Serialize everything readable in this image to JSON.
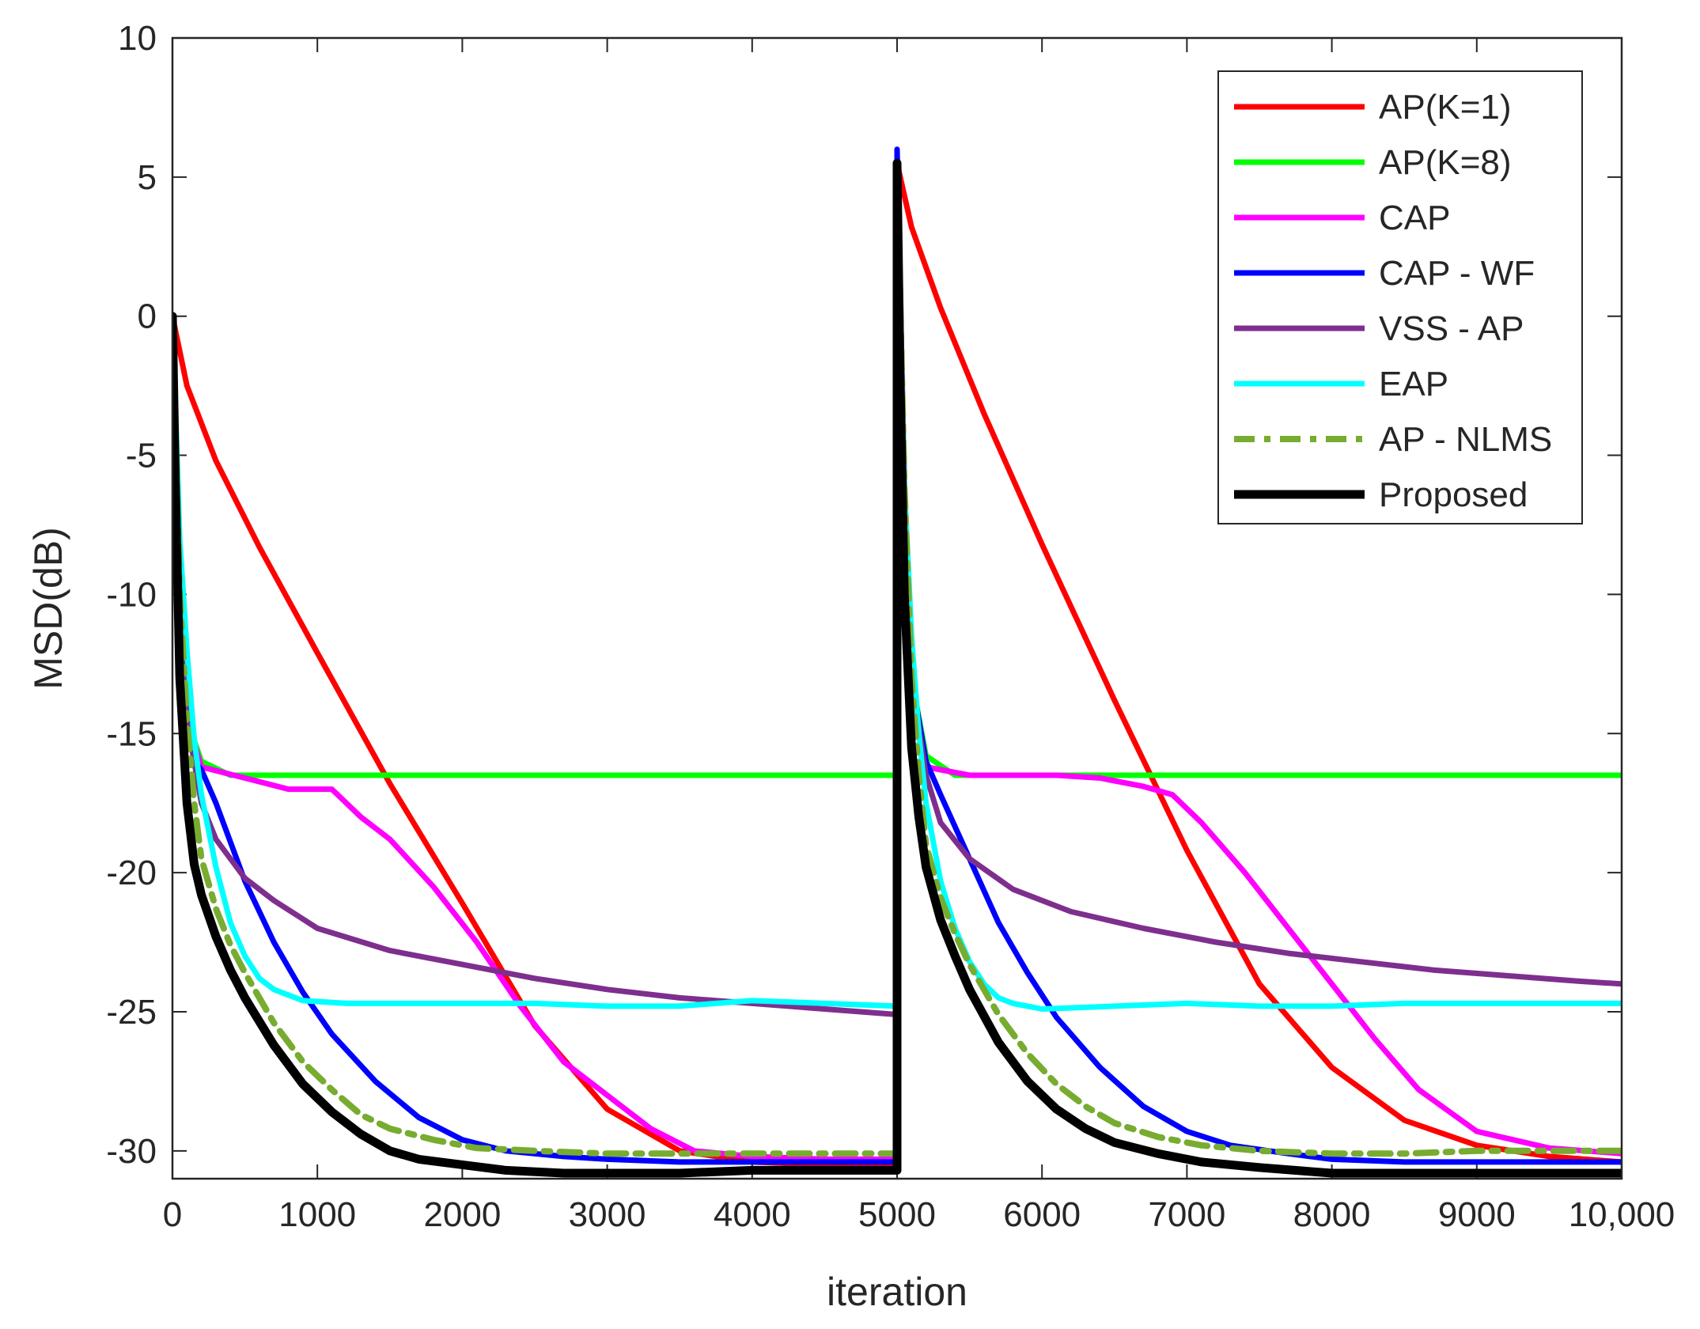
{
  "chart_data": {
    "type": "line",
    "title": "",
    "xlabel": "iteration",
    "ylabel": "MSD(dB)",
    "xlim": [
      0,
      10000
    ],
    "ylim": [
      -31,
      10
    ],
    "xticks": [
      0,
      1000,
      2000,
      3000,
      4000,
      5000,
      6000,
      7000,
      8000,
      9000,
      10000
    ],
    "xtick_labels": [
      "0",
      "1000",
      "2000",
      "3000",
      "4000",
      "5000",
      "6000",
      "7000",
      "8000",
      "9000",
      "10,000"
    ],
    "yticks": [
      10,
      5,
      0,
      -5,
      -10,
      -15,
      -20,
      -25,
      -30
    ],
    "ytick_labels": [
      "10",
      "5",
      "0",
      "-5",
      "-10",
      "-15",
      "-20",
      "-25",
      "-30"
    ],
    "legend_position": "top-right",
    "series": [
      {
        "name": "AP(K=1)",
        "color": "#ff0000",
        "style": "solid",
        "x": [
          0,
          100,
          300,
          600,
          1000,
          1500,
          2000,
          2500,
          3000,
          3500,
          4000,
          4500,
          5000,
          5000,
          5100,
          5300,
          5600,
          6000,
          6500,
          7000,
          7500,
          8000,
          8500,
          9000,
          9500,
          10000
        ],
        "values": [
          0,
          -2.5,
          -5.2,
          -8.3,
          -12.1,
          -16.8,
          -21.1,
          -25.5,
          -28.5,
          -30.0,
          -30.4,
          -30.5,
          -30.6,
          5.5,
          3.2,
          0.3,
          -3.5,
          -8.2,
          -13.8,
          -19.2,
          -24.0,
          -27.0,
          -28.9,
          -29.8,
          -30.2,
          -30.4
        ]
      },
      {
        "name": "AP(K=8)",
        "color": "#00ff00",
        "style": "solid",
        "x": [
          0,
          50,
          100,
          200,
          400,
          1000,
          2000,
          3000,
          4000,
          5000,
          5000,
          5050,
          5100,
          5200,
          5400,
          6000,
          7000,
          8000,
          9000,
          10000
        ],
        "values": [
          0,
          -10,
          -14.5,
          -16.0,
          -16.5,
          -16.5,
          -16.5,
          -16.5,
          -16.5,
          -16.5,
          5.5,
          -6,
          -13,
          -15.8,
          -16.5,
          -16.5,
          -16.5,
          -16.5,
          -16.5,
          -16.5
        ]
      },
      {
        "name": "CAP",
        "color": "#ff00ff",
        "style": "solid",
        "x": [
          0,
          50,
          100,
          200,
          500,
          800,
          1100,
          1300,
          1500,
          1800,
          2100,
          2400,
          2700,
          3000,
          3300,
          3600,
          4000,
          4500,
          5000,
          5000,
          5050,
          5100,
          5200,
          5500,
          5800,
          6100,
          6400,
          6700,
          6900,
          7100,
          7400,
          7700,
          8000,
          8300,
          8600,
          9000,
          9500,
          10000
        ],
        "values": [
          0,
          -10,
          -14.5,
          -16.2,
          -16.6,
          -17.0,
          -17.0,
          -18.0,
          -18.8,
          -20.5,
          -22.5,
          -24.8,
          -26.8,
          -28.0,
          -29.2,
          -30.0,
          -30.2,
          -30.3,
          -30.3,
          5.5,
          -6,
          -13,
          -16.2,
          -16.5,
          -16.5,
          -16.5,
          -16.6,
          -16.9,
          -17.2,
          -18.2,
          -20.0,
          -22.0,
          -24.0,
          -26.0,
          -27.8,
          -29.3,
          -29.9,
          -30.1
        ]
      },
      {
        "name": "CAP - WF",
        "color": "#0000ff",
        "style": "solid",
        "x": [
          0,
          50,
          100,
          150,
          200,
          300,
          500,
          700,
          900,
          1100,
          1400,
          1700,
          2000,
          2300,
          2700,
          3000,
          3500,
          4000,
          4500,
          5000,
          5000,
          5050,
          5100,
          5200,
          5300,
          5500,
          5700,
          5900,
          6100,
          6400,
          6700,
          7000,
          7300,
          7700,
          8000,
          8500,
          9000,
          9500,
          10000
        ],
        "values": [
          0,
          -10,
          -14.5,
          -16.0,
          -16.3,
          -17.5,
          -20.3,
          -22.5,
          -24.3,
          -25.8,
          -27.5,
          -28.8,
          -29.6,
          -30.0,
          -30.2,
          -30.3,
          -30.4,
          -30.4,
          -30.4,
          -30.4,
          6.0,
          -6,
          -13,
          -16.0,
          -17.2,
          -19.5,
          -21.8,
          -23.6,
          -25.2,
          -27.0,
          -28.4,
          -29.3,
          -29.8,
          -30.1,
          -30.3,
          -30.4,
          -30.4,
          -30.4,
          -30.4
        ]
      },
      {
        "name": "VSS - AP",
        "color": "#7e2f8e",
        "style": "solid",
        "x": [
          0,
          50,
          100,
          200,
          300,
          500,
          700,
          1000,
          1500,
          2000,
          2500,
          3000,
          3500,
          4000,
          4500,
          5000,
          5000,
          5050,
          5100,
          5200,
          5300,
          5500,
          5800,
          6200,
          6700,
          7200,
          7700,
          8200,
          8700,
          9200,
          9700,
          10000
        ],
        "values": [
          0,
          -10,
          -14.5,
          -17.5,
          -18.8,
          -20.2,
          -21.0,
          -22.0,
          -22.8,
          -23.3,
          -23.8,
          -24.2,
          -24.5,
          -24.7,
          -24.9,
          -25.1,
          5.5,
          -6,
          -13,
          -16.5,
          -18.2,
          -19.5,
          -20.6,
          -21.4,
          -22.0,
          -22.5,
          -22.9,
          -23.2,
          -23.5,
          -23.7,
          -23.9,
          -24.0
        ]
      },
      {
        "name": "EAP",
        "color": "#00ffff",
        "style": "solid",
        "x": [
          0,
          50,
          100,
          150,
          200,
          300,
          400,
          500,
          600,
          700,
          900,
          1200,
          1600,
          2000,
          2500,
          3000,
          3500,
          4000,
          4500,
          5000,
          5000,
          5050,
          5100,
          5150,
          5200,
          5300,
          5400,
          5500,
          5600,
          5700,
          5800,
          6000,
          6500,
          7000,
          7500,
          8000,
          8500,
          9000,
          9500,
          10000
        ],
        "values": [
          0,
          -8.0,
          -12.0,
          -15.2,
          -17.2,
          -19.8,
          -21.8,
          -23.0,
          -23.8,
          -24.2,
          -24.6,
          -24.7,
          -24.7,
          -24.7,
          -24.7,
          -24.8,
          -24.8,
          -24.6,
          -24.7,
          -24.8,
          5.5,
          -6.0,
          -11.5,
          -15.0,
          -17.5,
          -20.3,
          -22.0,
          -23.2,
          -24.0,
          -24.5,
          -24.7,
          -24.9,
          -24.8,
          -24.7,
          -24.8,
          -24.8,
          -24.7,
          -24.7,
          -24.7,
          -24.7
        ]
      },
      {
        "name": "AP - NLMS",
        "color": "#77ac30",
        "style": "dashed",
        "x": [
          0,
          50,
          100,
          150,
          200,
          300,
          400,
          500,
          700,
          900,
          1100,
          1300,
          1500,
          1800,
          2100,
          2500,
          3000,
          3500,
          4000,
          4500,
          5000,
          5000,
          5050,
          5100,
          5150,
          5200,
          5300,
          5400,
          5500,
          5700,
          5900,
          6100,
          6300,
          6500,
          6800,
          7100,
          7500,
          8000,
          8500,
          9000,
          9500,
          10000
        ],
        "values": [
          0,
          -10,
          -14.5,
          -17.5,
          -19.5,
          -21.3,
          -22.6,
          -23.6,
          -25.4,
          -26.8,
          -27.8,
          -28.7,
          -29.2,
          -29.6,
          -29.9,
          -30.0,
          -30.1,
          -30.1,
          -30.1,
          -30.1,
          -30.1,
          5.5,
          -6,
          -13,
          -16.5,
          -19.0,
          -20.9,
          -22.2,
          -23.3,
          -25.1,
          -26.5,
          -27.6,
          -28.4,
          -29.0,
          -29.5,
          -29.8,
          -30.0,
          -30.1,
          -30.1,
          -30.0,
          -30.0,
          -30.0
        ]
      },
      {
        "name": "Proposed",
        "color": "#000000",
        "style": "solid-thick",
        "x": [
          0,
          20,
          50,
          100,
          150,
          200,
          300,
          400,
          500,
          700,
          900,
          1100,
          1300,
          1500,
          1700,
          2000,
          2300,
          2700,
          3000,
          3500,
          4000,
          4500,
          5000,
          5000,
          5020,
          5050,
          5100,
          5150,
          5200,
          5300,
          5400,
          5500,
          5700,
          5900,
          6100,
          6300,
          6500,
          6800,
          7100,
          7500,
          8000,
          8500,
          9000,
          9500,
          10000
        ],
        "values": [
          0,
          -6,
          -13,
          -17.5,
          -19.7,
          -20.8,
          -22.3,
          -23.5,
          -24.5,
          -26.2,
          -27.6,
          -28.6,
          -29.4,
          -30.0,
          -30.3,
          -30.5,
          -30.7,
          -30.8,
          -30.8,
          -30.8,
          -30.7,
          -30.7,
          -30.7,
          5.5,
          -2,
          -10,
          -15.5,
          -18.0,
          -19.8,
          -21.7,
          -23.0,
          -24.2,
          -26.1,
          -27.5,
          -28.5,
          -29.2,
          -29.7,
          -30.1,
          -30.4,
          -30.6,
          -30.8,
          -30.8,
          -30.8,
          -30.8,
          -30.8
        ]
      }
    ]
  }
}
